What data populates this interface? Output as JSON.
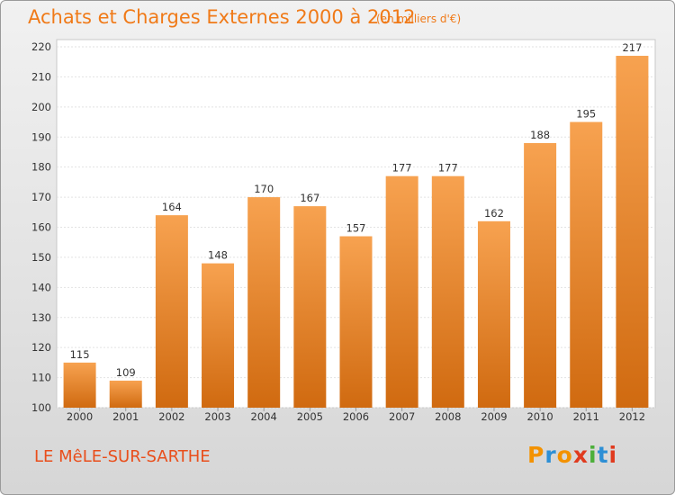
{
  "header": {
    "title": "Achats et Charges Externes 2000 à 2012",
    "unit": "(en milliers d'€)"
  },
  "footer": {
    "commune": "LE MêLE-SUR-SARTHE",
    "logo": "Proxiti"
  },
  "colors": {
    "title": "#f07a18",
    "bar_light": "#f7a250",
    "bar_dark": "#d06a10",
    "logo": [
      "#f39200",
      "#2d8fd5",
      "#f39200",
      "#e03a1e",
      "#4caf3a",
      "#2d8fd5",
      "#e03a1e"
    ]
  },
  "chart_data": {
    "type": "bar",
    "title": "Achats et Charges Externes 2000 à 2012",
    "subtitle": "(en milliers d'€)",
    "xlabel": "",
    "ylabel": "",
    "categories": [
      "2000",
      "2001",
      "2002",
      "2003",
      "2004",
      "2005",
      "2006",
      "2007",
      "2008",
      "2009",
      "2010",
      "2011",
      "2012"
    ],
    "values": [
      115,
      109,
      164,
      148,
      170,
      167,
      157,
      177,
      177,
      162,
      188,
      195,
      217
    ],
    "ylim": [
      100,
      220
    ],
    "yticks": [
      100,
      110,
      120,
      130,
      140,
      150,
      160,
      170,
      180,
      190,
      200,
      210,
      220
    ],
    "grid": true,
    "legend": "none"
  }
}
